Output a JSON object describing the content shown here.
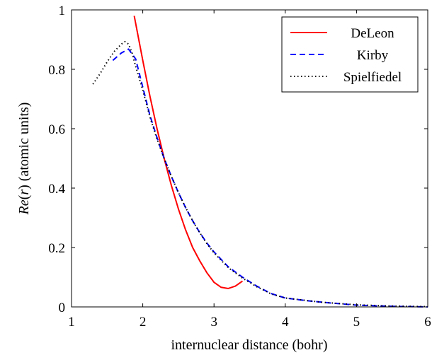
{
  "chart_data": {
    "type": "line",
    "xlabel": "internuclear distance (bohr)",
    "ylabel_prefix": "Re(",
    "ylabel_var": "r",
    "ylabel_suffix": ") (atomic units)",
    "xlim": [
      1,
      6
    ],
    "ylim": [
      0,
      1
    ],
    "xticks": [
      1,
      2,
      3,
      4,
      5,
      6
    ],
    "yticks": [
      0,
      0.2,
      0.4,
      0.6,
      0.8,
      1
    ],
    "xtick_labels": [
      "1",
      "2",
      "3",
      "4",
      "5",
      "6"
    ],
    "ytick_labels": [
      "0",
      "0.2",
      "0.4",
      "0.6",
      "0.8",
      "1"
    ],
    "grid": false,
    "legend_position": "top-right",
    "series": [
      {
        "name": "DeLeon",
        "color": "#ff0000",
        "dash": "solid",
        "x": [
          1.88,
          2.0,
          2.1,
          2.2,
          2.3,
          2.4,
          2.5,
          2.6,
          2.7,
          2.8,
          2.9,
          3.0,
          3.1,
          3.2,
          3.3,
          3.4
        ],
        "y": [
          0.98,
          0.83,
          0.71,
          0.6,
          0.5,
          0.41,
          0.33,
          0.26,
          0.2,
          0.155,
          0.115,
          0.083,
          0.066,
          0.062,
          0.07,
          0.087
        ]
      },
      {
        "name": "Kirby",
        "color": "#0000ff",
        "dash": "dashed",
        "x": [
          1.58,
          1.7,
          1.8,
          1.9,
          2.0,
          2.1,
          2.2,
          2.3,
          2.4,
          2.5,
          2.6,
          2.7,
          2.8,
          2.9,
          3.0,
          3.2,
          3.4,
          3.6,
          3.8,
          4.0,
          4.3,
          4.6,
          5.0,
          5.5,
          6.0
        ],
        "y": [
          0.83,
          0.855,
          0.868,
          0.835,
          0.74,
          0.645,
          0.57,
          0.5,
          0.44,
          0.385,
          0.335,
          0.29,
          0.25,
          0.215,
          0.185,
          0.135,
          0.1,
          0.07,
          0.045,
          0.03,
          0.021,
          0.014,
          0.006,
          0.002,
          0.0
        ]
      },
      {
        "name": "Spielfiedel",
        "color": "#000000",
        "dash": "dotted",
        "x": [
          1.3,
          1.4,
          1.5,
          1.6,
          1.7,
          1.75,
          1.8,
          1.85,
          1.9,
          2.0,
          2.1,
          2.2,
          2.3,
          2.4,
          2.5,
          2.6,
          2.7,
          2.8,
          2.9,
          3.0,
          3.2,
          3.4,
          3.6,
          3.8,
          4.0,
          4.5,
          5.0,
          5.5,
          6.0
        ],
        "y": [
          0.75,
          0.785,
          0.825,
          0.86,
          0.885,
          0.893,
          0.885,
          0.855,
          0.81,
          0.73,
          0.64,
          0.565,
          0.5,
          0.44,
          0.385,
          0.335,
          0.29,
          0.25,
          0.213,
          0.182,
          0.132,
          0.097,
          0.068,
          0.044,
          0.03,
          0.016,
          0.007,
          0.003,
          0.001
        ]
      }
    ]
  }
}
